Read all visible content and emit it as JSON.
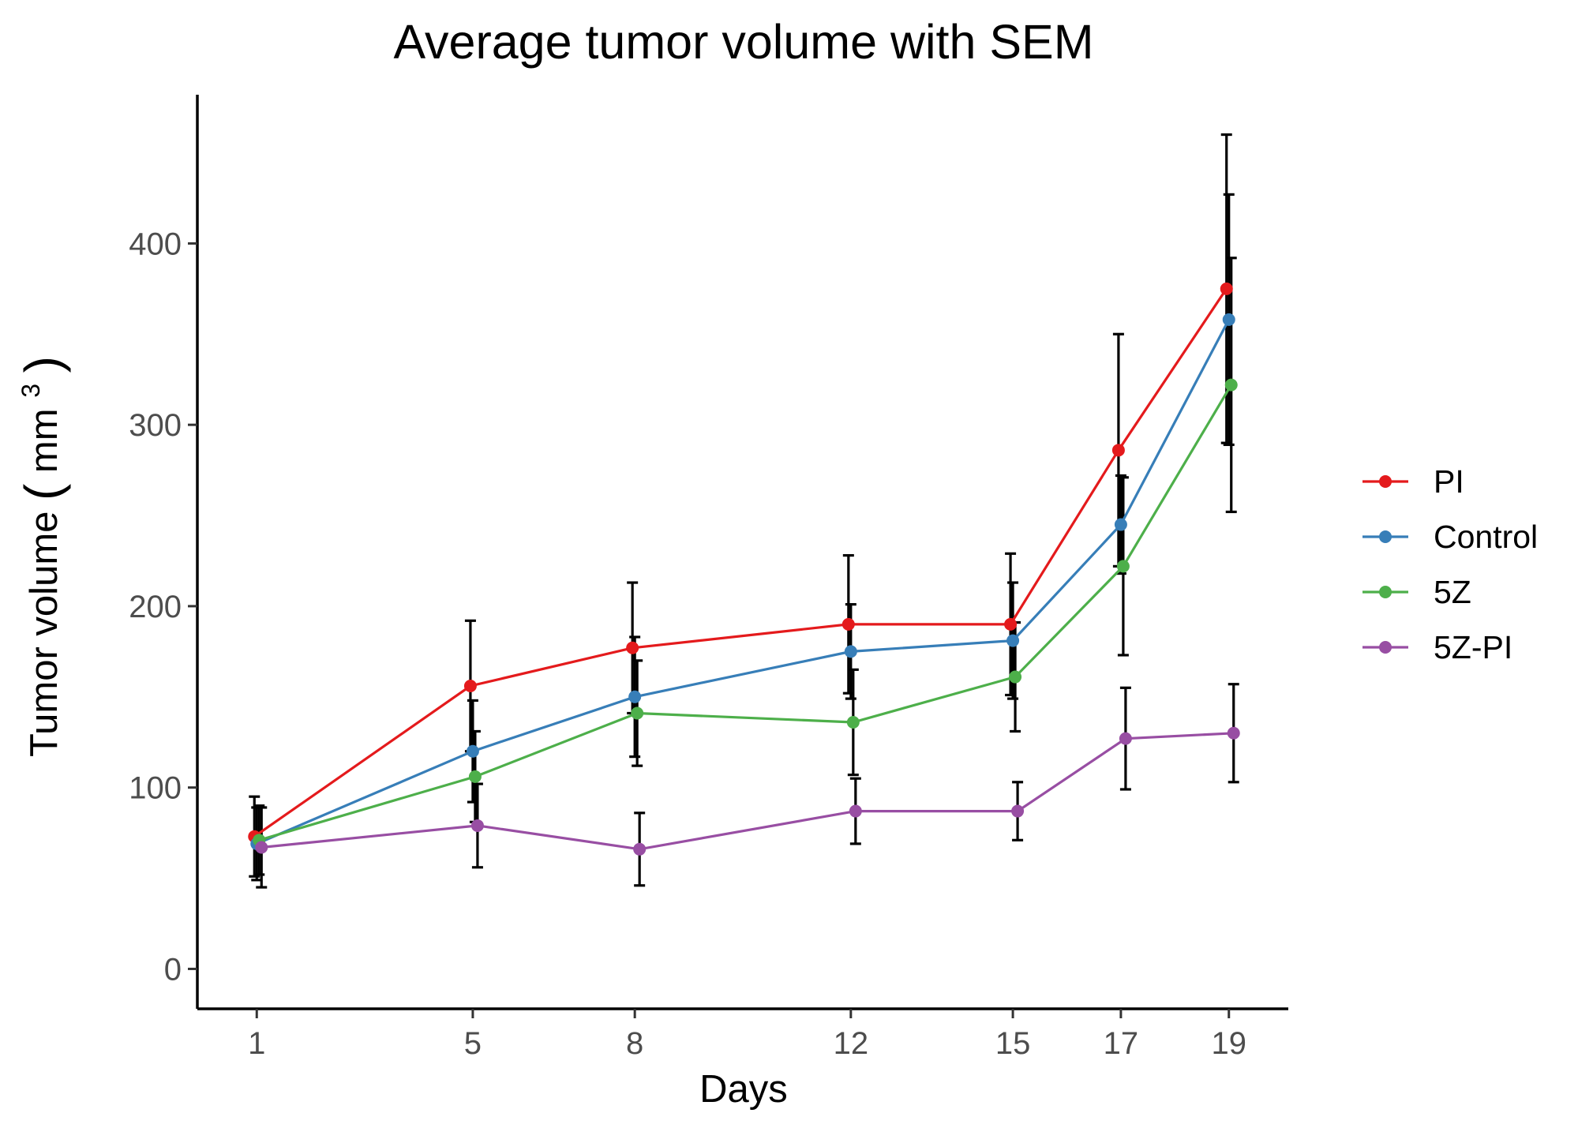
{
  "chart_data": {
    "type": "line",
    "title": "Average tumor volume with SEM",
    "xlabel": "Days",
    "ylabel": "Tumor volume",
    "ylabel_unit_base": "mm",
    "ylabel_unit_exponent": "3",
    "x": [
      1,
      5,
      8,
      12,
      15,
      17,
      19
    ],
    "x_tick_labels": [
      "1",
      "5",
      "8",
      "12",
      "15",
      "17",
      "19"
    ],
    "y_ticks": [
      0,
      100,
      200,
      300,
      400
    ],
    "y_tick_labels": [
      "0",
      "100",
      "200",
      "300",
      "400"
    ],
    "xlim": [
      -0.1,
      20.1
    ],
    "ylim": [
      -22,
      482
    ],
    "grid": false,
    "legend_position": "right",
    "error_bars": "SEM",
    "series": [
      {
        "name": "PI",
        "color": "#e41a1c",
        "values": [
          73,
          156,
          177,
          190,
          190,
          286,
          375
        ],
        "error": [
          22,
          36,
          36,
          38,
          39,
          64,
          85
        ]
      },
      {
        "name": "Control",
        "color": "#377eb8",
        "values": [
          69,
          120,
          150,
          175,
          181,
          245,
          358
        ],
        "error": [
          20,
          28,
          33,
          26,
          32,
          27,
          69
        ]
      },
      {
        "name": "5Z",
        "color": "#4daf4a",
        "values": [
          71,
          106,
          141,
          136,
          161,
          222,
          322
        ],
        "error": [
          19,
          25,
          29,
          29,
          30,
          49,
          70
        ]
      },
      {
        "name": "5Z-PI",
        "color": "#984ea3",
        "values": [
          67,
          79,
          66,
          87,
          87,
          127,
          130
        ],
        "error": [
          22,
          23,
          20,
          18,
          16,
          28,
          27
        ]
      }
    ]
  }
}
